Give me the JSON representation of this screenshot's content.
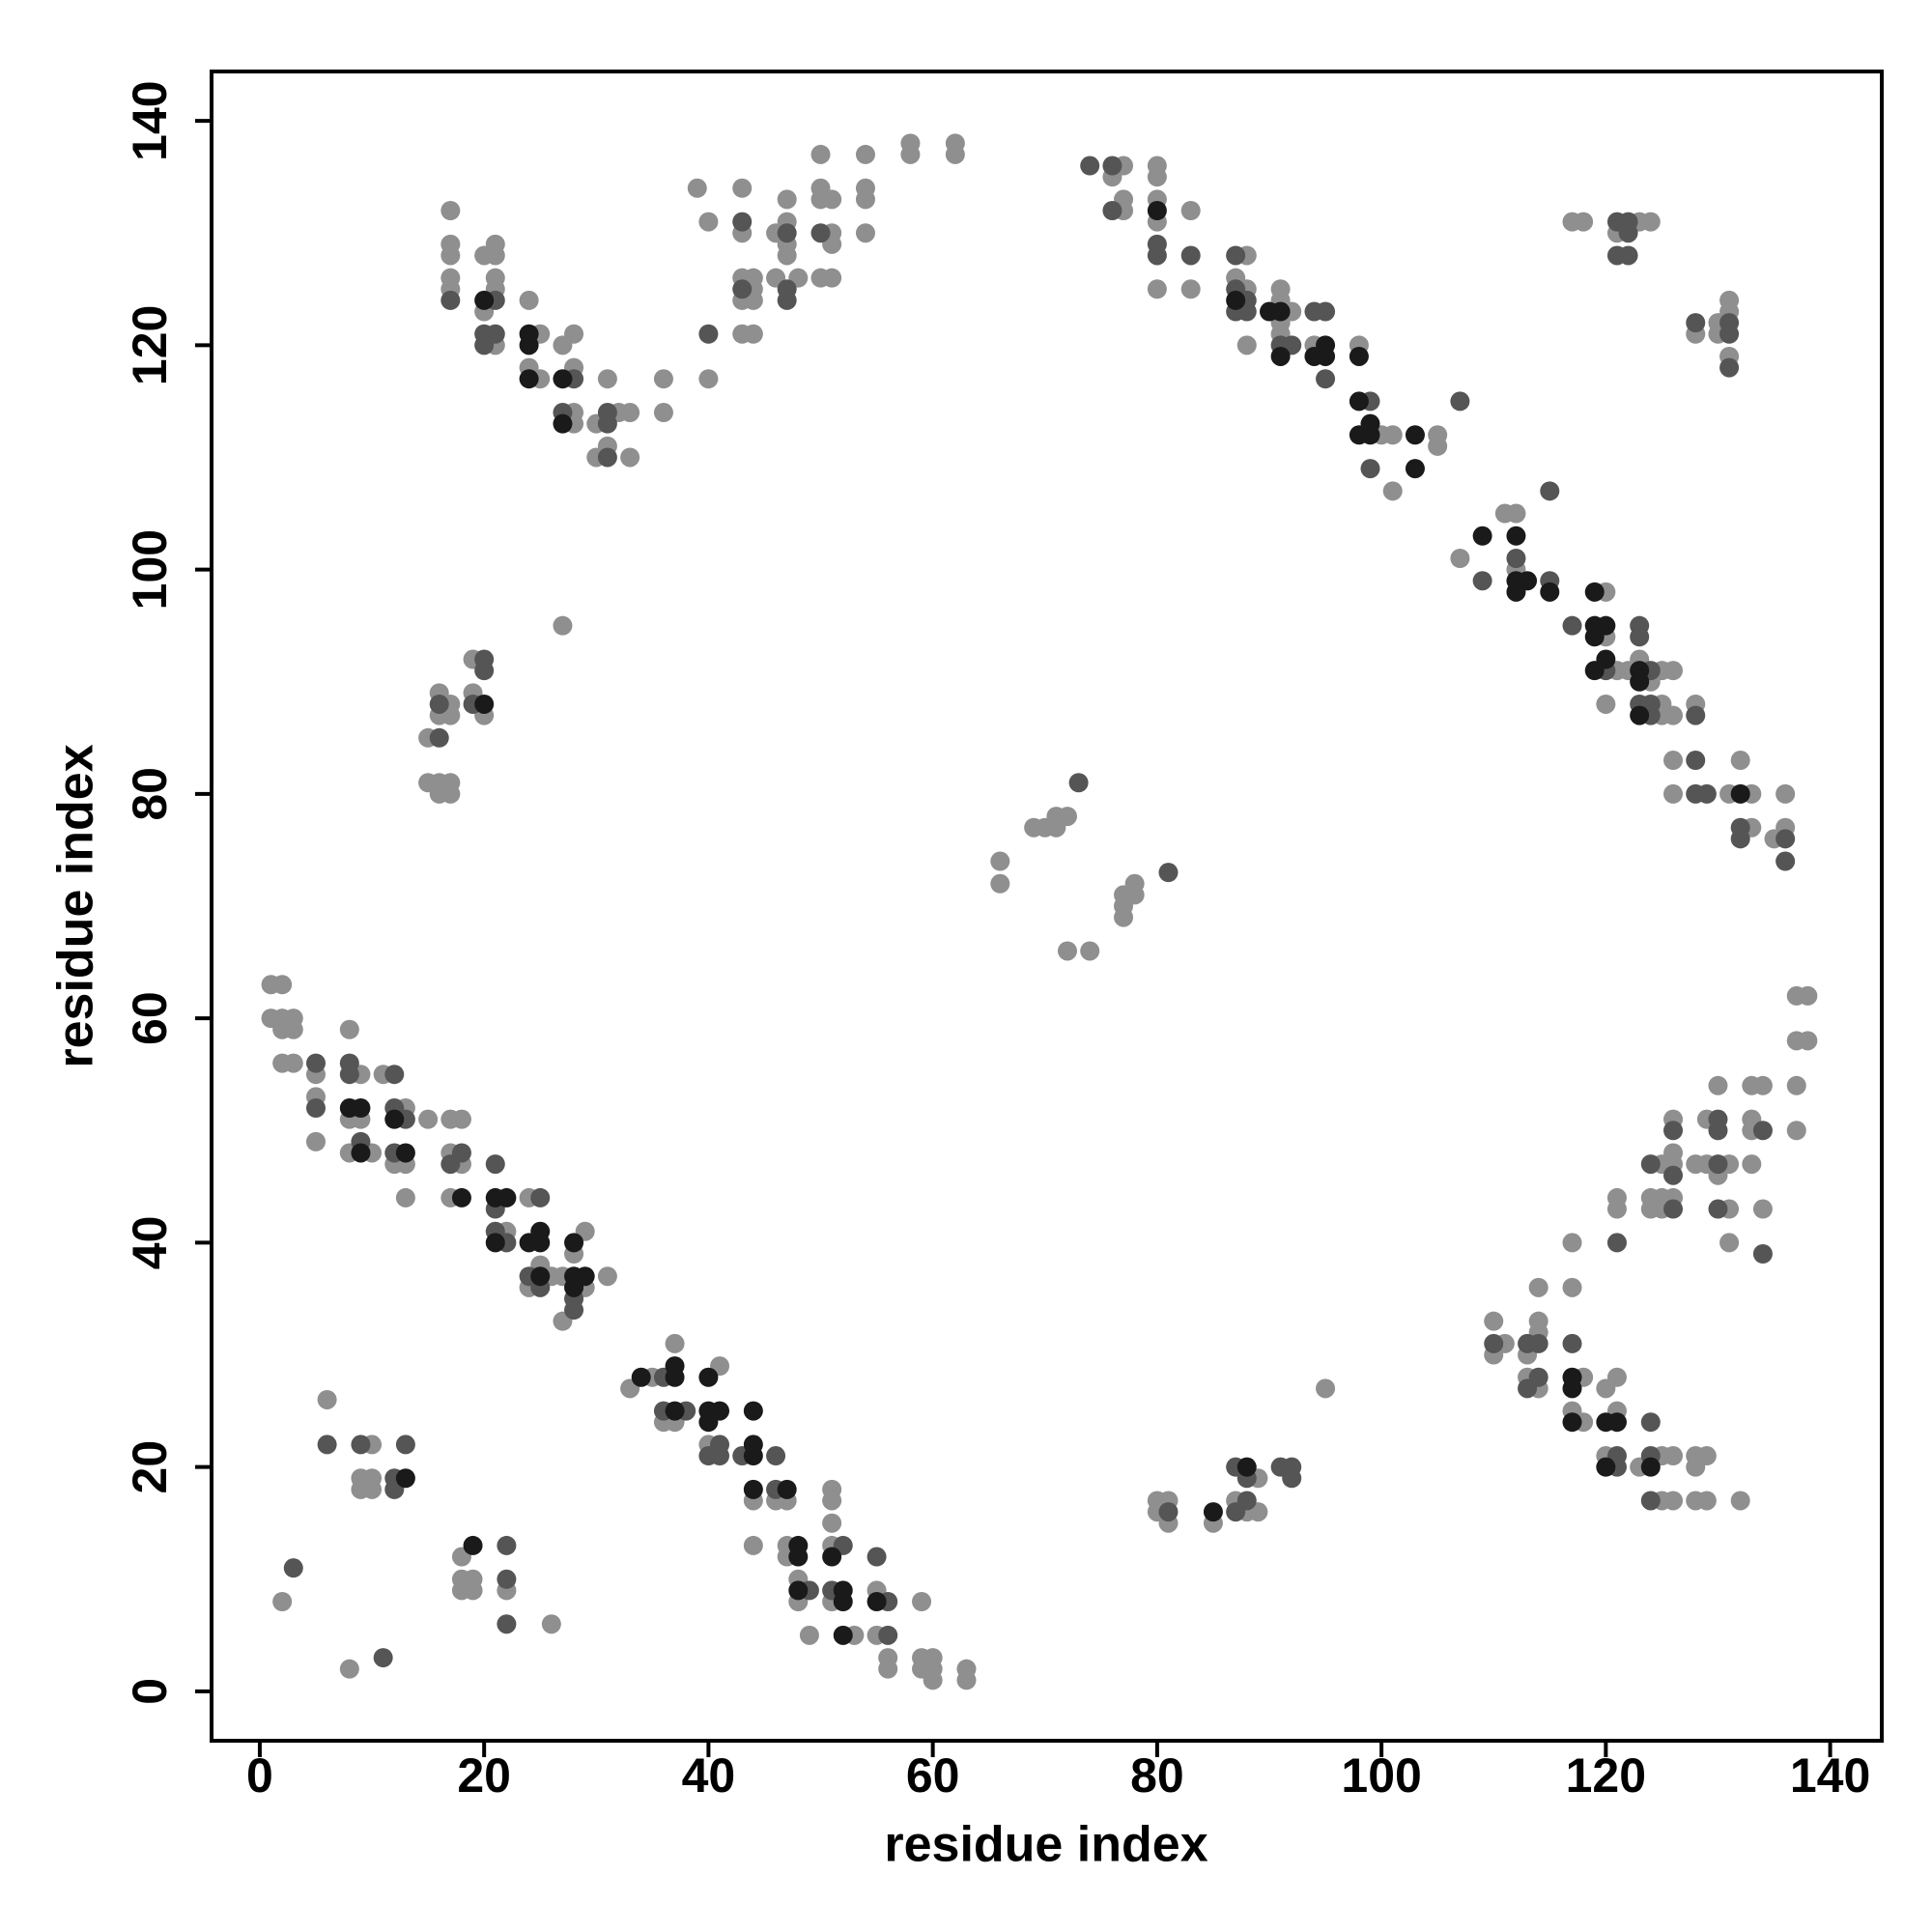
{
  "chart_data": {
    "type": "scatter",
    "x_label": "residue index",
    "y_label": "residue index",
    "xlim": [
      -4.3,
      144.6
    ],
    "ylim": [
      -4.4,
      144.4
    ],
    "xticks": [
      0,
      20,
      40,
      60,
      80,
      100,
      120,
      140
    ],
    "yticks": [
      0,
      20,
      40,
      60,
      80,
      100,
      120,
      140
    ],
    "series": [
      {
        "color": "#8f8f8f",
        "x": [
          1,
          2,
          1,
          2,
          3,
          2,
          3,
          2,
          3,
          5,
          5,
          5,
          8,
          9,
          8,
          9,
          8,
          10,
          11,
          13,
          12,
          13,
          13,
          15,
          17,
          18,
          17,
          18,
          17,
          22,
          24,
          24,
          25,
          26,
          27,
          28,
          29,
          29,
          27,
          31,
          33,
          35,
          37,
          36,
          37,
          40,
          41,
          44,
          44,
          46,
          47,
          47,
          47,
          48,
          48,
          49,
          51,
          51,
          51,
          51,
          51,
          53,
          55,
          55,
          56,
          56,
          59,
          59,
          60,
          59,
          60,
          60,
          63,
          63,
          2,
          8,
          6,
          10,
          9,
          10,
          9,
          10,
          18,
          18,
          19,
          18,
          19,
          22,
          26,
          27,
          17,
          17,
          17,
          17,
          17,
          20,
          21,
          21,
          21,
          21,
          20,
          21,
          24,
          25,
          24,
          25,
          27,
          28,
          28,
          28,
          28,
          30,
          31,
          30,
          32,
          33,
          33,
          31,
          36,
          36,
          40,
          39,
          40,
          43,
          43,
          43,
          44,
          44,
          43,
          44,
          43,
          44,
          46,
          47,
          47,
          47,
          47,
          46,
          48,
          50,
          50,
          50,
          51,
          51,
          51,
          50,
          51,
          54,
          54,
          54,
          54,
          58,
          58,
          62,
          62,
          15,
          16,
          17,
          16,
          17,
          19,
          19,
          20,
          15,
          16,
          17,
          16,
          17,
          66,
          66,
          69,
          70,
          71,
          71,
          72,
          72,
          74,
          77,
          78,
          78,
          77,
          77,
          95,
          77,
          76,
          77,
          77,
          80,
          80,
          80,
          80,
          80,
          83,
          83,
          88,
          87,
          88,
          88,
          91,
          91,
          92,
          91,
          91,
          94,
          98,
          100,
          101,
          101,
          105,
          105,
          107,
          111,
          112,
          112,
          120,
          120,
          121,
          122,
          120,
          123,
          124,
          125,
          126,
          125,
          125,
          126,
          128,
          126,
          126,
          132,
          131,
          133,
          133,
          135,
          136,
          136,
          117,
          118,
          123,
          124,
          121,
          128,
          130,
          130,
          131,
          131,
          131,
          137,
          138,
          137,
          138,
          137,
          137,
          130,
          133,
          134,
          126,
          129,
          133,
          133,
          125,
          126,
          126,
          128,
          129,
          131,
          130,
          133,
          121,
          121,
          124,
          125,
          126,
          124,
          125,
          131,
          134,
          131,
          117,
          117,
          114,
          110,
          114,
          111,
          114,
          110,
          113,
          113,
          114,
          118,
          120,
          121,
          117,
          121,
          118,
          120,
          125,
          126,
          123,
          125,
          126,
          128,
          129,
          128,
          128,
          129,
          132,
          80,
          81,
          80,
          81,
          85,
          87,
          88,
          89,
          89
        ],
        "y": [
          63,
          63,
          60,
          60,
          60,
          59,
          59,
          56,
          56,
          55,
          53,
          49,
          59,
          55,
          51,
          51,
          48,
          48,
          55,
          52,
          47,
          47,
          44,
          51,
          51,
          51,
          48,
          47,
          44,
          41,
          44,
          36,
          38,
          37,
          37,
          39,
          41,
          36,
          33,
          37,
          27,
          28,
          31,
          24,
          24,
          22,
          29,
          17,
          13,
          17,
          17,
          13,
          12,
          10,
          8,
          5,
          18,
          17,
          15,
          13,
          8,
          5,
          9,
          5,
          3,
          2,
          8,
          3,
          3,
          2,
          2,
          1,
          2,
          1,
          8,
          2,
          26,
          22,
          19,
          19,
          18,
          18,
          12,
          10,
          10,
          9,
          9,
          9,
          6,
          95,
          132,
          129,
          128,
          126,
          125,
          128,
          129,
          128,
          126,
          125,
          123,
          120,
          124,
          121,
          118,
          117,
          120,
          121,
          118,
          114,
          113,
          113,
          111,
          110,
          114,
          114,
          110,
          117,
          117,
          114,
          117,
          134,
          131,
          134,
          130,
          126,
          126,
          125,
          124,
          124,
          121,
          121,
          130,
          131,
          133,
          129,
          128,
          126,
          126,
          137,
          134,
          133,
          133,
          130,
          129,
          126,
          126,
          137,
          134,
          133,
          130,
          138,
          137,
          138,
          137,
          85,
          89,
          88,
          87,
          87,
          92,
          89,
          87,
          81,
          81,
          81,
          80,
          80,
          74,
          72,
          77,
          77,
          77,
          78,
          78,
          66,
          66,
          71,
          71,
          72,
          70,
          69,
          27,
          136,
          135,
          133,
          132,
          136,
          135,
          133,
          131,
          125,
          132,
          125,
          128,
          126,
          125,
          120,
          125,
          124,
          123,
          122,
          121,
          120,
          120,
          112,
          112,
          107,
          112,
          111,
          101,
          105,
          105,
          100,
          98,
          94,
          91,
          91,
          88,
          92,
          90,
          91,
          91,
          88,
          87,
          87,
          88,
          83,
          80,
          83,
          80,
          80,
          77,
          76,
          77,
          80,
          131,
          131,
          131,
          131,
          130,
          121,
          122,
          121,
          124,
          123,
          119,
          62,
          62,
          58,
          58,
          54,
          50,
          54,
          54,
          54,
          51,
          51,
          51,
          50,
          47,
          48,
          47,
          47,
          47,
          47,
          46,
          47,
          44,
          43,
          44,
          44,
          44,
          43,
          43,
          43,
          43,
          40,
          40,
          36,
          36,
          33,
          33,
          31,
          32,
          30,
          30,
          28,
          27,
          28,
          27,
          28,
          25,
          25,
          24,
          21,
          21,
          21,
          20,
          17,
          17,
          21,
          21,
          20,
          17,
          17,
          17,
          17,
          17,
          16,
          15,
          15,
          17,
          16,
          19,
          16
        ]
      },
      {
        "color": "#555555",
        "x": [
          3,
          11,
          5,
          5,
          8,
          8,
          9,
          12,
          12,
          13,
          12,
          18,
          17,
          21,
          21,
          21,
          22,
          25,
          24,
          25,
          28,
          28,
          36,
          36,
          38,
          41,
          40,
          41,
          43,
          46,
          46,
          49,
          52,
          51,
          55,
          56,
          56,
          6,
          9,
          12,
          12,
          13,
          22,
          22,
          22,
          17,
          20,
          21,
          20,
          21,
          28,
          27,
          31,
          31,
          31,
          40,
          43,
          43,
          47,
          47,
          47,
          50,
          16,
          16,
          20,
          20,
          19,
          73,
          81,
          74,
          76,
          76,
          80,
          80,
          83,
          87,
          87,
          88,
          87,
          88,
          91,
          92,
          94,
          95,
          95,
          99,
          99,
          107,
          109,
          112,
          115,
          115,
          117,
          120,
          123,
          123,
          124,
          123,
          124,
          124,
          128,
          128,
          128,
          129,
          132,
          132,
          136,
          136,
          121,
          122,
          122,
          121,
          122,
          128,
          131,
          131,
          131,
          126,
          130,
          130,
          134,
          124,
          126,
          130,
          126,
          130,
          134,
          121,
          110,
          113,
          114,
          114,
          113,
          117,
          121,
          121,
          124,
          124,
          124,
          81,
          87,
          88,
          87,
          88,
          91,
          92,
          92
        ],
        "y": [
          11,
          3,
          56,
          52,
          56,
          55,
          49,
          55,
          52,
          51,
          48,
          48,
          47,
          47,
          43,
          41,
          40,
          44,
          37,
          36,
          35,
          34,
          28,
          25,
          25,
          21,
          21,
          22,
          21,
          21,
          18,
          9,
          13,
          9,
          12,
          8,
          5,
          22,
          22,
          19,
          18,
          22,
          13,
          10,
          6,
          124,
          121,
          121,
          120,
          124,
          117,
          114,
          113,
          114,
          110,
          121,
          131,
          125,
          130,
          125,
          124,
          130,
          85,
          88,
          92,
          91,
          88,
          81,
          73,
          136,
          136,
          132,
          129,
          128,
          128,
          128,
          125,
          124,
          123,
          123,
          120,
          120,
          123,
          123,
          117,
          115,
          109,
          115,
          99,
          101,
          107,
          99,
          95,
          91,
          95,
          94,
          91,
          88,
          88,
          87,
          87,
          83,
          80,
          80,
          77,
          76,
          76,
          74,
          131,
          131,
          130,
          128,
          128,
          122,
          122,
          121,
          118,
          50,
          51,
          50,
          50,
          47,
          46,
          47,
          43,
          43,
          39,
          40,
          31,
          31,
          31,
          28,
          27,
          31,
          21,
          20,
          24,
          21,
          17,
          16,
          20,
          17,
          16,
          19,
          20,
          20,
          19
        ]
      },
      {
        "color": "#1a1a1a",
        "x": [
          8,
          9,
          9,
          12,
          13,
          18,
          21,
          22,
          21,
          24,
          25,
          25,
          25,
          28,
          28,
          28,
          29,
          34,
          37,
          37,
          37,
          40,
          40,
          40,
          41,
          44,
          44,
          44,
          44,
          47,
          48,
          48,
          48,
          51,
          52,
          52,
          52,
          55,
          13,
          19,
          20,
          24,
          24,
          24,
          27,
          27,
          80,
          87,
          90,
          91,
          91,
          95,
          94,
          95,
          98,
          98,
          98,
          99,
          99,
          103,
          103,
          109,
          112,
          112,
          113,
          112,
          115,
          119,
          119,
          120,
          119,
          119,
          120,
          123,
          123,
          123,
          132,
          20,
          117,
          117,
          117,
          120,
          121,
          120,
          124,
          85,
          88
        ],
        "y": [
          52,
          52,
          48,
          51,
          48,
          44,
          44,
          44,
          40,
          40,
          41,
          40,
          37,
          40,
          37,
          36,
          37,
          28,
          29,
          28,
          25,
          28,
          25,
          24,
          25,
          22,
          21,
          25,
          18,
          18,
          13,
          12,
          9,
          12,
          9,
          8,
          5,
          8,
          19,
          13,
          124,
          121,
          120,
          117,
          117,
          113,
          132,
          124,
          123,
          123,
          119,
          120,
          119,
          119,
          119,
          115,
          112,
          113,
          112,
          112,
          109,
          103,
          103,
          99,
          99,
          98,
          98,
          98,
          95,
          95,
          94,
          91,
          92,
          91,
          90,
          87,
          80,
          88,
          28,
          27,
          24,
          24,
          24,
          20,
          20,
          16,
          20
        ]
      }
    ]
  }
}
